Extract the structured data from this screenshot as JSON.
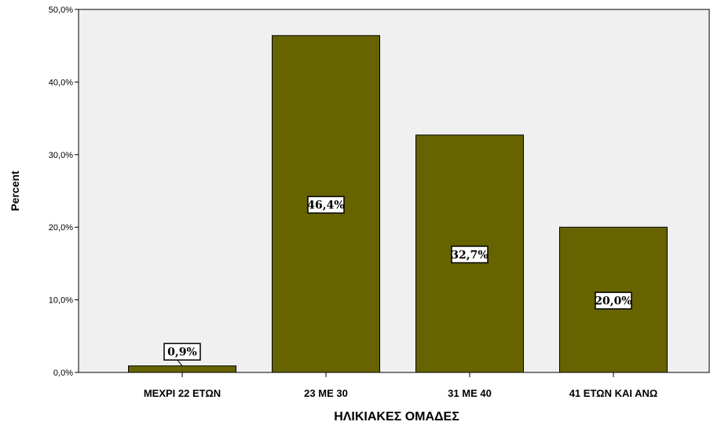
{
  "chart_data": {
    "type": "bar",
    "categories": [
      "ΜΕΧΡΙ 22 ΕΤΩΝ",
      "23 ΜΕ 30",
      "31 ΜΕ 40",
      "41 ΕΤΩΝ ΚΑΙ ΑΝΩ"
    ],
    "values": [
      0.9,
      46.4,
      32.7,
      20.0
    ],
    "data_labels": [
      "0,9%",
      "46,4%",
      "32,7%",
      "20,0%"
    ],
    "xlabel": "ΗΛΙΚΙΑΚΕΣ ΟΜΑΔΕΣ",
    "ylabel": "Percent",
    "ylim": [
      0,
      50
    ],
    "yticks": [
      0,
      10,
      20,
      30,
      40,
      50
    ],
    "ytick_labels": [
      "0,0%",
      "10,0%",
      "20,0%",
      "30,0%",
      "40,0%",
      "50,0%"
    ],
    "grid": false,
    "colors": {
      "bar": "#666300",
      "plot_background": "#F0F0F0",
      "bar_outline": "#000000"
    }
  }
}
